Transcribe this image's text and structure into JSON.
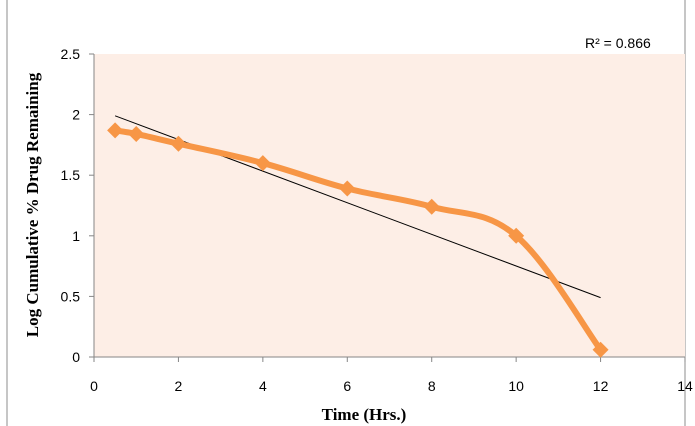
{
  "chart_data": {
    "type": "line",
    "title": "",
    "xlabel": "Time (Hrs.)",
    "ylabel": "Log Cumulative % Drug Remaining",
    "xlim": [
      0,
      14
    ],
    "ylim": [
      0,
      2.5
    ],
    "x_ticks": [
      "0",
      "2",
      "4",
      "6",
      "8",
      "10",
      "12",
      "14"
    ],
    "y_ticks": [
      "0",
      "0.5",
      "1",
      "1.5",
      "2",
      "2.5"
    ],
    "series": [
      {
        "x": [
          0.5,
          1,
          2,
          4,
          6,
          8,
          10,
          12
        ],
        "y": [
          1.87,
          1.84,
          1.76,
          1.6,
          1.39,
          1.24,
          1.0,
          0.06
        ],
        "color": "#f79646",
        "marker": "diamond",
        "smooth": true
      }
    ],
    "trendline": {
      "type": "linear",
      "x": [
        0.5,
        12
      ],
      "y": [
        1.99,
        0.49
      ],
      "color": "#000000",
      "r2_label": "R² = 0.866"
    },
    "plot_background": "#fdeee6",
    "grid": false,
    "legend": "none"
  }
}
